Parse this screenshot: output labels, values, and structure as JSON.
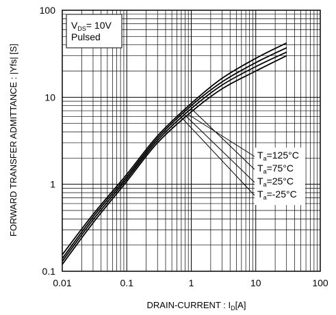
{
  "chart_data": {
    "type": "line",
    "x_scale": "log",
    "y_scale": "log",
    "xlim": [
      0.01,
      100
    ],
    "ylim": [
      0.1,
      100
    ],
    "grid": true,
    "xlabel_prefix": "DRAIN-CURRENT : I",
    "xlabel_sub": "D",
    "xlabel_suffix": "[A]",
    "ylabel": "FORWARD TRANSFER  ADMITTANCE : |Yfs| [S]",
    "x_ticks": [
      {
        "value": 0.01,
        "label": "0.01"
      },
      {
        "value": 0.1,
        "label": "0.1"
      },
      {
        "value": 1,
        "label": "1"
      },
      {
        "value": 10,
        "label": "10"
      },
      {
        "value": 100,
        "label": "100"
      }
    ],
    "y_ticks": [
      {
        "value": 0.1,
        "label": "0.1"
      },
      {
        "value": 1,
        "label": "1"
      },
      {
        "value": 10,
        "label": "10"
      },
      {
        "value": 100,
        "label": "100"
      }
    ],
    "conditions": {
      "line1_main": "V",
      "line1_sub": "DS",
      "line1_value": "= 10V",
      "line2": "Pulsed"
    },
    "legend_placement": "right-center",
    "series": [
      {
        "name": "125°C",
        "x": [
          0.01,
          0.03,
          0.1,
          0.3,
          1,
          3,
          10,
          30
        ],
        "y": [
          0.12,
          0.36,
          1.08,
          3.0,
          6.8,
          12.5,
          20.0,
          30.0
        ]
      },
      {
        "name": "75°C",
        "x": [
          0.01,
          0.03,
          0.1,
          0.3,
          1,
          3,
          10,
          30
        ],
        "y": [
          0.13,
          0.39,
          1.15,
          3.2,
          7.4,
          13.8,
          22.5,
          33.0
        ]
      },
      {
        "name": "25°C",
        "x": [
          0.01,
          0.03,
          0.1,
          0.3,
          1,
          3,
          10,
          30
        ],
        "y": [
          0.14,
          0.42,
          1.22,
          3.4,
          8.0,
          15.0,
          25.0,
          37.0
        ]
      },
      {
        "name": "-25°C",
        "x": [
          0.01,
          0.03,
          0.1,
          0.3,
          1,
          3,
          10,
          30
        ],
        "y": [
          0.155,
          0.45,
          1.3,
          3.6,
          8.5,
          16.5,
          28.0,
          42.0
        ]
      }
    ],
    "legend_prefix_main": "T",
    "legend_prefix_sub": "a",
    "legend_prefix_eq": "="
  }
}
